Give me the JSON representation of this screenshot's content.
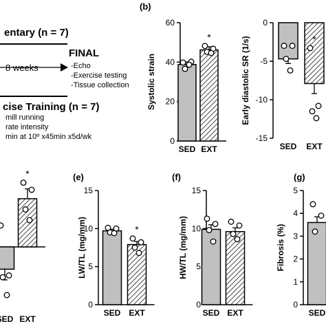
{
  "schematic": {
    "group1_title": "entary (n = 7)",
    "duration": "8 weeks",
    "final_title": "FINAL",
    "final_items": [
      "-Echo",
      "-Exercise testing",
      "-Tissue collection"
    ],
    "group2_title": "cise Training (n = 7)",
    "training_items": [
      "mill running",
      "rate intensity",
      "min at 10º x45min x5d/wk"
    ]
  },
  "colors": {
    "sed_fill": "#c0c0c0",
    "ext_fill": "#ffffff",
    "hatch": "#444444",
    "stroke": "#000000"
  },
  "chart_data": [
    {
      "panel": "(b)",
      "type": "bar",
      "ylabel": "Systolic strain",
      "categories": [
        "SED",
        "EXT"
      ],
      "ylim": [
        0,
        60
      ],
      "yticks": [
        0,
        20,
        40,
        60
      ],
      "values": [
        38.8,
        46.2
      ],
      "errors": [
        1.3,
        1.6
      ],
      "points": [
        [
          39.8,
          40.2,
          36.6,
          38.7
        ],
        [
          48.2,
          46.8,
          45.2,
          44.6
        ]
      ],
      "significance": [
        "",
        "*"
      ]
    },
    {
      "panel": "",
      "type": "bar",
      "ylabel": "Early diastolic SR (1/s)",
      "categories": [
        "SED",
        "EXT"
      ],
      "ylim": [
        -15,
        0
      ],
      "yticks": [
        0,
        -5,
        -10,
        -15
      ],
      "values": [
        -4.7,
        -7.9
      ],
      "errors": [
        0.6,
        1.3
      ],
      "points": [
        [
          -3.0,
          -3.0,
          -4.7,
          -6.2
        ],
        [
          -3.3,
          -10.8,
          -11.5,
          -12.4
        ]
      ],
      "significance": [
        "",
        "*"
      ]
    },
    {
      "panel": "",
      "type": "bar",
      "ylabel": "",
      "categories": [
        "SED",
        "EXT"
      ],
      "ylim": [
        -3.2,
        4.2
      ],
      "yticks": [],
      "values": [
        -1.25,
        2.7
      ],
      "errors": [
        0.6,
        0.55
      ],
      "points": [
        [
          1.2,
          -1.6,
          -1.7,
          -2.7
        ],
        [
          3.6,
          3.2,
          2.1,
          1.5
        ]
      ],
      "significance": [
        "",
        "*"
      ]
    },
    {
      "panel": "(e)",
      "type": "bar",
      "ylabel": "LW/TL (mg/mm)",
      "categories": [
        "SED",
        "EXT"
      ],
      "ylim": [
        0,
        15
      ],
      "yticks": [
        0,
        5,
        10,
        15
      ],
      "values": [
        9.7,
        7.9
      ],
      "errors": [
        0.2,
        0.4
      ],
      "points": [
        [
          10.1,
          10.0,
          9.5,
          9.4
        ],
        [
          8.7,
          8.2,
          7.5,
          6.8
        ]
      ],
      "significance": [
        "",
        "*"
      ]
    },
    {
      "panel": "(f)",
      "type": "bar",
      "ylabel": "HW/TL (mg/mm)",
      "categories": [
        "SED",
        "EXT"
      ],
      "ylim": [
        0,
        15
      ],
      "yticks": [
        0,
        5,
        10,
        15
      ],
      "values": [
        9.9,
        9.6
      ],
      "errors": [
        0.6,
        0.5
      ],
      "points": [
        [
          11.3,
          10.6,
          9.8,
          8.3
        ],
        [
          10.9,
          10.4,
          9.3,
          8.6
        ]
      ],
      "significance": [
        "",
        ""
      ]
    },
    {
      "panel": "(g)",
      "type": "bar",
      "ylabel": "Fibrosis (%)",
      "categories": [
        "SED"
      ],
      "ylim": [
        0,
        5
      ],
      "yticks": [
        0,
        1,
        2,
        3,
        4,
        5
      ],
      "values": [
        3.6
      ],
      "errors": [
        0.25
      ],
      "points": [
        [
          4.4,
          3.9,
          3.2
        ]
      ],
      "significance": [
        ""
      ]
    }
  ]
}
